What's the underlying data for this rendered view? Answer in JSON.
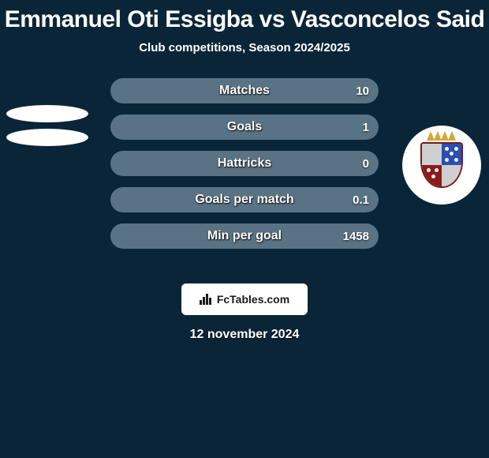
{
  "title": {
    "text": "Emmanuel Oti Essigba vs Vasconcelos Said",
    "fontsize": 30,
    "color": "#ffffff"
  },
  "subtitle": {
    "text": "Club competitions, Season 2024/2025",
    "fontsize": 15,
    "color": "#ffffff"
  },
  "background_color": "#0a2538",
  "left_player": {
    "name": "Emmanuel Oti Essigba",
    "avatar_pills": 2,
    "pill_color": "#ffffff"
  },
  "right_player": {
    "name": "Vasconcelos Said",
    "has_crest": true,
    "crest_bg": "#ffffff",
    "crest_colors": {
      "crown": "#d4a838",
      "shield_border": "#7a1818",
      "quad_tl": "#cfcfcf",
      "quad_tr": "#2a4fb0",
      "quad_bl": "#8a1c1c",
      "quad_br": "#cfcfcf"
    }
  },
  "bars": {
    "track_color": "#5a7384",
    "left_fill_color": "#5a7384",
    "label_fontsize": 16,
    "value_fontsize": 15,
    "rows": [
      {
        "label": "Matches",
        "left_value": "",
        "right_value": "10",
        "left_pct": 0
      },
      {
        "label": "Goals",
        "left_value": "",
        "right_value": "1",
        "left_pct": 0
      },
      {
        "label": "Hattricks",
        "left_value": "",
        "right_value": "0",
        "left_pct": 0
      },
      {
        "label": "Goals per match",
        "left_value": "",
        "right_value": "0.1",
        "left_pct": 0
      },
      {
        "label": "Min per goal",
        "left_value": "",
        "right_value": "1458",
        "left_pct": 0
      }
    ]
  },
  "attribution": {
    "text": "FcTables.com",
    "bg": "#ffffff",
    "color": "#1a1a1a",
    "icon_color": "#1a1a1a"
  },
  "date": {
    "text": "12 november 2024",
    "fontsize": 16,
    "color": "#ffffff"
  }
}
